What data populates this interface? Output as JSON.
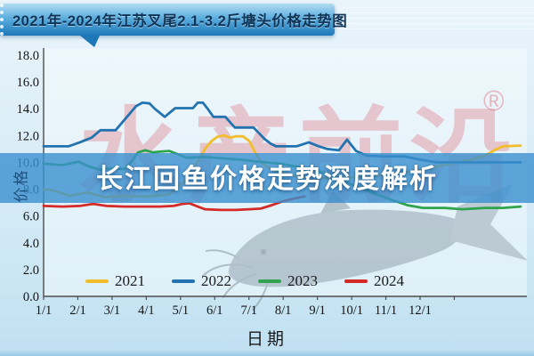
{
  "banner": {
    "title": "2021年-2024年江苏叉尾2.1-3.2斤塘头价格走势图"
  },
  "overlay": {
    "headline": "长江回鱼价格走势深度解析",
    "band_color": "#3a90cf"
  },
  "watermark": {
    "text": "水产前沿",
    "registered": "®",
    "color": "#e0808c"
  },
  "chart_data": {
    "type": "line",
    "title": "2021年-2024年江苏叉尾2.1-3.2斤塘头价格走势图",
    "xlabel": "日期",
    "ylabel": "价格",
    "x_tick_labels": [
      "1/1",
      "2/1",
      "3/1",
      "4/1",
      "5/1",
      "6/1",
      "7/1",
      "8/1",
      "9/1",
      "10/1",
      "11/1",
      "12/1"
    ],
    "ylim": [
      0,
      18
    ],
    "y_tick_step": 2,
    "grid": false,
    "legend_position": "bottom-inside",
    "x_note": "points are [fraction_across_plot, price]; ticks are monthly dates",
    "series": [
      {
        "name": "2021",
        "color": "#f2bd2a",
        "points": [
          [
            0,
            8.0
          ],
          [
            0.021,
            7.9
          ],
          [
            0.054,
            7.5
          ],
          [
            0.091,
            7.75
          ],
          [
            0.129,
            7.4
          ],
          [
            0.17,
            7.5
          ],
          [
            0.216,
            7.45
          ],
          [
            0.263,
            7.6
          ],
          [
            0.291,
            8.4
          ],
          [
            0.31,
            9.3
          ],
          [
            0.326,
            10.2
          ],
          [
            0.338,
            11.0
          ],
          [
            0.351,
            11.55
          ],
          [
            0.364,
            11.9
          ],
          [
            0.379,
            12.0
          ],
          [
            0.39,
            11.85
          ],
          [
            0.405,
            11.95
          ],
          [
            0.418,
            11.95
          ],
          [
            0.431,
            11.6
          ],
          [
            0.444,
            10.7
          ],
          [
            0.459,
            9.9
          ],
          [
            0.487,
            9.3
          ],
          [
            0.543,
            8.9
          ],
          [
            0.617,
            8.8
          ],
          [
            0.692,
            9.0
          ],
          [
            0.767,
            9.3
          ],
          [
            0.841,
            9.8
          ],
          [
            0.897,
            10.2
          ],
          [
            0.925,
            10.5
          ],
          [
            0.95,
            11.0
          ],
          [
            0.963,
            11.2
          ],
          [
            1,
            11.25
          ]
        ]
      },
      {
        "name": "2022",
        "color": "#2273b0",
        "points": [
          [
            0,
            11.2
          ],
          [
            0.052,
            11.2
          ],
          [
            0.076,
            11.5
          ],
          [
            0.101,
            11.85
          ],
          [
            0.119,
            12.4
          ],
          [
            0.151,
            12.4
          ],
          [
            0.17,
            13.2
          ],
          [
            0.194,
            14.2
          ],
          [
            0.207,
            14.45
          ],
          [
            0.222,
            14.4
          ],
          [
            0.233,
            14.0
          ],
          [
            0.254,
            13.4
          ],
          [
            0.276,
            14.05
          ],
          [
            0.313,
            14.05
          ],
          [
            0.323,
            14.45
          ],
          [
            0.334,
            14.45
          ],
          [
            0.345,
            13.95
          ],
          [
            0.356,
            13.4
          ],
          [
            0.381,
            13.4
          ],
          [
            0.392,
            12.95
          ],
          [
            0.401,
            12.6
          ],
          [
            0.44,
            12.6
          ],
          [
            0.451,
            12.2
          ],
          [
            0.463,
            11.75
          ],
          [
            0.476,
            11.4
          ],
          [
            0.487,
            11.2
          ],
          [
            0.53,
            11.2
          ],
          [
            0.556,
            11.5
          ],
          [
            0.577,
            11.2
          ],
          [
            0.595,
            11.0
          ],
          [
            0.619,
            10.9
          ],
          [
            0.636,
            11.7
          ],
          [
            0.655,
            10.85
          ],
          [
            0.677,
            10.5
          ],
          [
            0.711,
            10.45
          ],
          [
            0.757,
            10.45
          ],
          [
            0.789,
            10.2
          ],
          [
            0.823,
            10.0
          ],
          [
            1,
            10.0
          ]
        ]
      },
      {
        "name": "2023",
        "color": "#2fa34d",
        "points": [
          [
            0,
            9.9
          ],
          [
            0.039,
            9.8
          ],
          [
            0.073,
            10.05
          ],
          [
            0.095,
            9.7
          ],
          [
            0.118,
            9.45
          ],
          [
            0.142,
            9.55
          ],
          [
            0.17,
            9.5
          ],
          [
            0.185,
            10.1
          ],
          [
            0.198,
            10.75
          ],
          [
            0.213,
            10.9
          ],
          [
            0.229,
            10.75
          ],
          [
            0.244,
            10.8
          ],
          [
            0.263,
            10.85
          ],
          [
            0.282,
            10.6
          ],
          [
            0.3,
            10.35
          ],
          [
            0.338,
            10.4
          ],
          [
            0.375,
            10.3
          ],
          [
            0.412,
            10.2
          ],
          [
            0.45,
            10.05
          ],
          [
            0.496,
            9.9
          ],
          [
            0.543,
            9.6
          ],
          [
            0.58,
            9.3
          ],
          [
            0.617,
            8.85
          ],
          [
            0.655,
            8.2
          ],
          [
            0.692,
            7.7
          ],
          [
            0.729,
            7.2
          ],
          [
            0.763,
            6.8
          ],
          [
            0.795,
            6.6
          ],
          [
            0.841,
            6.6
          ],
          [
            0.878,
            6.5
          ],
          [
            0.925,
            6.6
          ],
          [
            0.963,
            6.6
          ],
          [
            1,
            6.7
          ]
        ]
      },
      {
        "name": "2024",
        "color": "#d42a28",
        "points": [
          [
            0,
            6.75
          ],
          [
            0.039,
            6.7
          ],
          [
            0.076,
            6.75
          ],
          [
            0.104,
            6.9
          ],
          [
            0.132,
            6.75
          ],
          [
            0.17,
            6.7
          ],
          [
            0.244,
            6.7
          ],
          [
            0.272,
            6.75
          ],
          [
            0.291,
            6.9
          ],
          [
            0.306,
            6.95
          ],
          [
            0.323,
            6.7
          ],
          [
            0.338,
            6.5
          ],
          [
            0.371,
            6.45
          ],
          [
            0.403,
            6.45
          ],
          [
            0.431,
            6.5
          ],
          [
            0.455,
            6.55
          ],
          [
            0.478,
            6.8
          ],
          [
            0.502,
            7.1
          ],
          [
            0.524,
            7.3
          ],
          [
            0.547,
            7.45
          ]
        ]
      }
    ]
  }
}
